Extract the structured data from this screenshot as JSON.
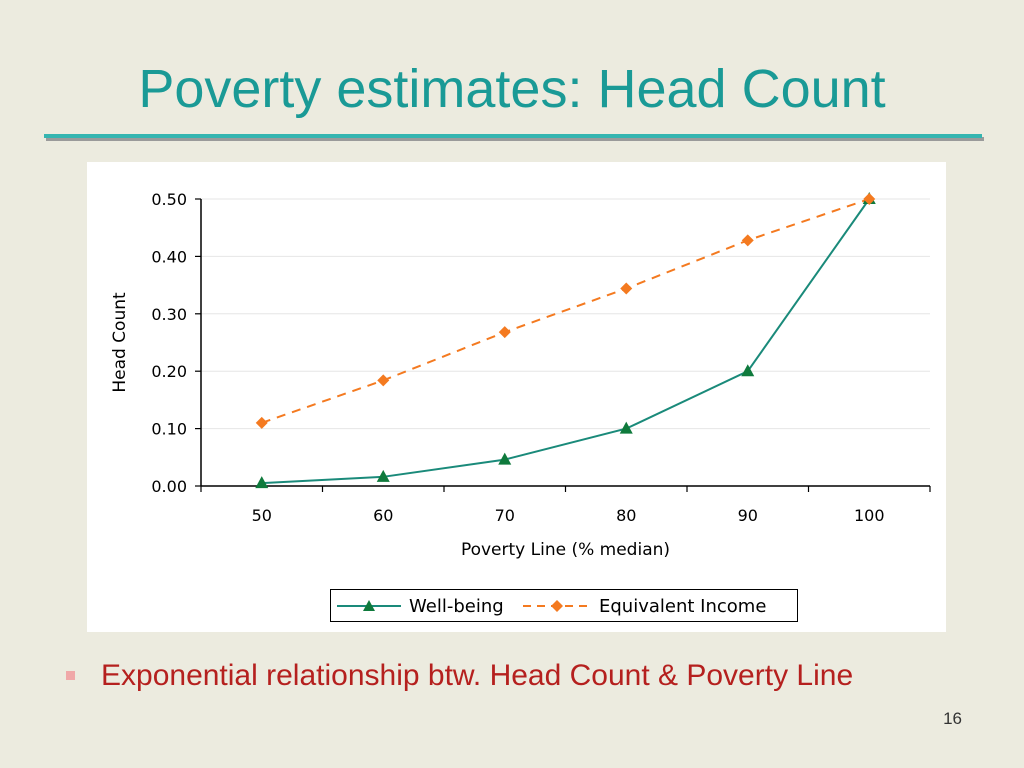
{
  "slide": {
    "title": "Poverty estimates: Head Count",
    "bullet_text": "Exponential relationship btw. Head Count & Poverty Line",
    "page_number": "16"
  },
  "colors": {
    "title": "#1A9A96",
    "rule": "#35B5B0",
    "background": "#ECEBDF",
    "bullet_text": "#B5201E",
    "bullet_marker": "#F0A8A8",
    "series_wellbeing": "#1A8A7A",
    "series_wellbeing_marker": "#0F7A3C",
    "series_equivalent": "#F47A20"
  },
  "chart_data": {
    "type": "line",
    "title": "",
    "xlabel": "Poverty Line (% median)",
    "ylabel": "Head Count",
    "x": [
      50,
      60,
      70,
      80,
      90,
      100
    ],
    "categories": [
      "50",
      "60",
      "70",
      "80",
      "90",
      "100"
    ],
    "ylim": [
      0,
      0.5
    ],
    "yticks": [
      "0.00",
      "0.10",
      "0.20",
      "0.30",
      "0.40",
      "0.50"
    ],
    "grid": true,
    "legend_position": "bottom",
    "series": [
      {
        "name": "Well-being",
        "values": [
          0.005,
          0.016,
          0.046,
          0.1,
          0.2,
          0.5
        ],
        "style": "solid",
        "marker": "triangle"
      },
      {
        "name": "Equivalent Income",
        "values": [
          0.11,
          0.184,
          0.268,
          0.344,
          0.428,
          0.5
        ],
        "style": "dashed",
        "marker": "diamond"
      }
    ]
  }
}
